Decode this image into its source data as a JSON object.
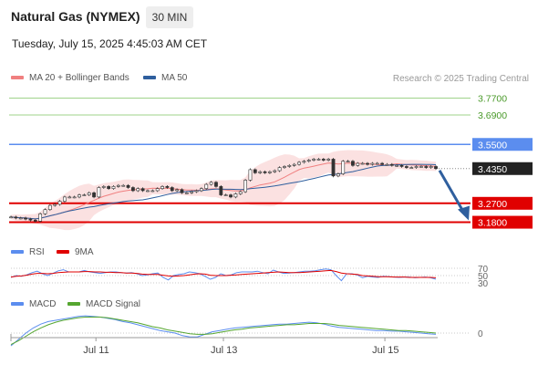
{
  "header": {
    "title": "Natural Gas (NYMEX)",
    "interval": "30 MIN",
    "datetime": "Tuesday, July 15, 2025 4:45:03 AM CET"
  },
  "legend": {
    "ma20_label": "MA 20 + Bollinger Bands",
    "ma50_label": "MA 50",
    "credit": "Research © 2025 Trading Central",
    "rsi_label": "RSI",
    "rsi_ma_label": "9MA",
    "macd_label": "MACD",
    "macd_signal_label": "MACD Signal"
  },
  "colors": {
    "ma20": "#f08080",
    "ma50": "#2f5f9e",
    "green_level": "#9fd38a",
    "blue_level": "#5b8def",
    "red_level": "#e00000",
    "current": "#222222",
    "rsi": "#5b8def",
    "rsi_ma": "#e00000",
    "macd": "#5b8def",
    "macd_signal": "#55a630",
    "arrow": "#2f5f9e"
  },
  "chart_data": {
    "type": "candlestick",
    "levels": [
      {
        "value": 3.77,
        "label": "3.7700",
        "kind": "resistance-2"
      },
      {
        "value": 3.69,
        "label": "3.6900",
        "kind": "resistance-1"
      },
      {
        "value": 3.55,
        "label": "3.5500",
        "kind": "pivot"
      },
      {
        "value": 3.435,
        "label": "3.4350",
        "kind": "current"
      },
      {
        "value": 3.27,
        "label": "3.2700",
        "kind": "support-1"
      },
      {
        "value": 3.18,
        "label": "3.1800",
        "kind": "support-2"
      }
    ],
    "price_ylim": [
      3.1,
      3.82
    ],
    "x_ticks": [
      "Jul 11",
      "Jul 13",
      "Jul 15"
    ],
    "x_tick_positions": [
      0.2,
      0.5,
      0.88
    ],
    "closes": [
      3.205,
      3.2,
      3.2,
      3.195,
      3.19,
      3.185,
      3.22,
      3.24,
      3.26,
      3.265,
      3.28,
      3.3,
      3.3,
      3.3,
      3.31,
      3.31,
      3.32,
      3.3,
      3.345,
      3.35,
      3.34,
      3.35,
      3.355,
      3.355,
      3.345,
      3.33,
      3.34,
      3.33,
      3.33,
      3.33,
      3.34,
      3.35,
      3.345,
      3.33,
      3.335,
      3.32,
      3.32,
      3.325,
      3.33,
      3.34,
      3.36,
      3.37,
      3.35,
      3.31,
      3.31,
      3.3,
      3.315,
      3.325,
      3.38,
      3.43,
      3.415,
      3.42,
      3.415,
      3.42,
      3.425,
      3.44,
      3.445,
      3.45,
      3.455,
      3.465,
      3.47,
      3.475,
      3.48,
      3.48,
      3.475,
      3.48,
      3.4,
      3.41,
      3.47,
      3.47,
      3.45,
      3.46,
      3.46,
      3.455,
      3.46,
      3.46,
      3.455,
      3.455,
      3.45,
      3.45,
      3.445,
      3.44,
      3.44,
      3.445,
      3.445,
      3.44,
      3.445,
      3.435
    ],
    "rsi_scale_ticks": [
      70,
      50,
      30
    ],
    "rsi": [
      45,
      50,
      48,
      52,
      58,
      62,
      55,
      50,
      56,
      63,
      66,
      60,
      60,
      60,
      64,
      60,
      58,
      56,
      58,
      60,
      60,
      58,
      57,
      58,
      55,
      50,
      52,
      55,
      57,
      45,
      38,
      50,
      53,
      55,
      60,
      58,
      55,
      48,
      40,
      45,
      55,
      50,
      52,
      58,
      60,
      60,
      60,
      62,
      58,
      55,
      65,
      60,
      56,
      57,
      58,
      60,
      62,
      62,
      63,
      66,
      68,
      66,
      50,
      36,
      55,
      55,
      52,
      44,
      48,
      46,
      45,
      48,
      47,
      46,
      45,
      46,
      46,
      44,
      45,
      46,
      44,
      40
    ],
    "rsi_ma": [
      46,
      48,
      49,
      51,
      54,
      56,
      56,
      55,
      56,
      58,
      59,
      60,
      60,
      60,
      61,
      61,
      60,
      60,
      59,
      59,
      58,
      58,
      57,
      57,
      56,
      54,
      53,
      53,
      53,
      51,
      49,
      48,
      49,
      50,
      52,
      54,
      55,
      54,
      51,
      50,
      50,
      50,
      51,
      52,
      53,
      54,
      55,
      56,
      57,
      58,
      59,
      60,
      59,
      58,
      58,
      58,
      59,
      60,
      61,
      62,
      63,
      64,
      61,
      57,
      55,
      54,
      53,
      50,
      49,
      48,
      47,
      47,
      47,
      46,
      46,
      46,
      45,
      45,
      45,
      45,
      45,
      44
    ],
    "macd_zero": 0,
    "macd": [
      -0.02,
      -0.01,
      0.0,
      0.008,
      0.014,
      0.018,
      0.02,
      0.022,
      0.024,
      0.026,
      0.027,
      0.026,
      0.025,
      0.023,
      0.021,
      0.018,
      0.016,
      0.013,
      0.01,
      0.007,
      0.004,
      0.002,
      0.0,
      -0.004,
      -0.006,
      -0.006,
      -0.002,
      0.002,
      0.004,
      0.006,
      0.008,
      0.009,
      0.01,
      0.011,
      0.012,
      0.013,
      0.014,
      0.014,
      0.015,
      0.016,
      0.017,
      0.016,
      0.014,
      0.011,
      0.009,
      0.008,
      0.007,
      0.006,
      0.005,
      0.004,
      0.004,
      0.003,
      0.003,
      0.002,
      0.001,
      0.0,
      -0.001,
      -0.002
    ],
    "macd_signal": [
      -0.018,
      -0.012,
      -0.005,
      0.002,
      0.008,
      0.013,
      0.017,
      0.02,
      0.022,
      0.024,
      0.025,
      0.025,
      0.025,
      0.024,
      0.022,
      0.02,
      0.018,
      0.016,
      0.013,
      0.01,
      0.008,
      0.005,
      0.003,
      0.001,
      -0.001,
      -0.002,
      -0.002,
      -0.001,
      0.001,
      0.003,
      0.005,
      0.006,
      0.008,
      0.009,
      0.01,
      0.011,
      0.012,
      0.013,
      0.013,
      0.014,
      0.015,
      0.015,
      0.015,
      0.014,
      0.012,
      0.011,
      0.01,
      0.009,
      0.008,
      0.007,
      0.006,
      0.005,
      0.004,
      0.004,
      0.003,
      0.002,
      0.001,
      0.0
    ],
    "forecast_target": 3.18
  }
}
